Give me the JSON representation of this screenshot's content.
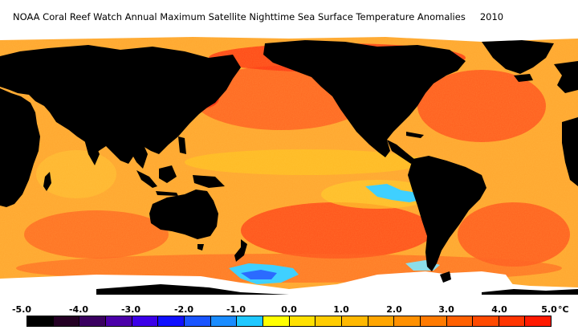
{
  "title": {
    "text": "NOAA Coral Reef Watch Annual Maximum Satellite Nighttime Sea Surface Temperature Anomalies",
    "year": "2010"
  },
  "colors": {
    "land": "#000000",
    "sea_ice": "#ffffff",
    "ocean_base": "#ffa52e",
    "warm_anomaly": "#ff4a1a",
    "hot_anomaly": "#ff2a10",
    "cool_anomaly": "#ffd830",
    "cold_anomaly": "#3fd0ff",
    "colder_anomaly": "#2b6bff"
  },
  "legend": {
    "ticks": [
      "-5.0",
      "-4.0",
      "-3.0",
      "-2.0",
      "-1.0",
      "0.0",
      "1.0",
      "2.0",
      "3.0",
      "4.0",
      "5.0"
    ],
    "unit": "°C",
    "swatches": [
      "#000000",
      "#240024",
      "#3a0060",
      "#4b00a8",
      "#3c00e8",
      "#1010ff",
      "#1a55ff",
      "#1a8cff",
      "#20c8ff",
      "#ffff00",
      "#ffe000",
      "#ffcc00",
      "#ffb800",
      "#ffa500",
      "#ff9000",
      "#ff7a00",
      "#ff6000",
      "#ff4a00",
      "#ff3500",
      "#ff1a00"
    ]
  }
}
